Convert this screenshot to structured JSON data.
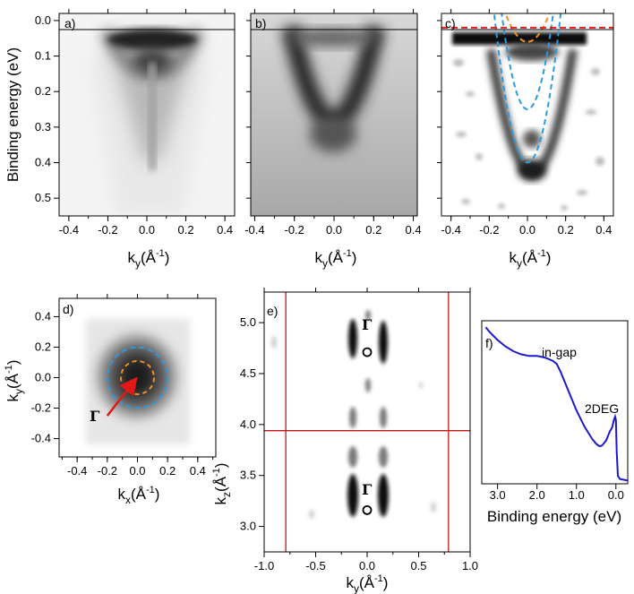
{
  "figure": {
    "panels": {
      "a": {
        "label": "a)",
        "xlabel_main": "k",
        "xlabel_sub": "y",
        "xlabel_unit": "(Å",
        "xlabel_exp": "-1",
        "xlabel_close": ")",
        "ylabel": "Binding energy (eV)"
      },
      "b": {
        "label": "b)",
        "xlabel_main": "k",
        "xlabel_sub": "y",
        "xlabel_unit": "(Å",
        "xlabel_exp": "-1",
        "xlabel_close": ")"
      },
      "c": {
        "label": "c)",
        "xlabel_main": "k",
        "xlabel_sub": "y",
        "xlabel_unit": "(Å",
        "xlabel_exp": "-1",
        "xlabel_close": ")"
      },
      "d": {
        "label": "d)",
        "xlabel_main": "k",
        "xlabel_sub": "x",
        "xlabel_unit": "(Å",
        "xlabel_exp": "-1",
        "xlabel_close": ")",
        "ylabel_main": "k",
        "ylabel_sub": "y",
        "ylabel_unit": "(Å",
        "ylabel_exp": "-1",
        "ylabel_close": ")",
        "gamma": "Γ"
      },
      "e": {
        "label": "e)",
        "xlabel_main": "k",
        "xlabel_sub": "y",
        "xlabel_unit": "(Å",
        "xlabel_exp": "-1",
        "xlabel_close": ")",
        "ylabel_main": "k",
        "ylabel_sub": "z",
        "ylabel_unit": "(Å",
        "ylabel_exp": "-1",
        "ylabel_close": ")",
        "gamma_top": "Γ",
        "gamma_bottom": "Γ"
      },
      "f": {
        "label": "f)",
        "xlabel": "Binding energy (eV)",
        "annotation_ingap": "in-gap",
        "annotation_2deg": "2DEG"
      }
    },
    "colors": {
      "blue_dash": "#2a9be0",
      "orange_dash": "#f0901e",
      "red_dash": "#e02020",
      "red_line": "#c0181b",
      "curve_blue": "#1a1acc",
      "arrow": "#e01818"
    }
  },
  "chart_data": [
    {
      "panel": "a",
      "type": "heatmap",
      "title": "",
      "xlabel": "ky(Å-1)",
      "ylabel": "Binding energy (eV)",
      "xlim": [
        -0.45,
        0.45
      ],
      "ylim": [
        0.55,
        -0.02
      ],
      "x_ticks": [
        "-0.4",
        "-0.2",
        "0.0",
        "0.2",
        "0.4"
      ],
      "y_ticks": [
        "0.0",
        "0.1",
        "0.2",
        "0.3",
        "0.4",
        "0.5"
      ],
      "x_tick_values": [
        -0.4,
        -0.2,
        0.0,
        0.2,
        0.4
      ],
      "y_tick_values": [
        0.0,
        0.1,
        0.2,
        0.3,
        0.4,
        0.5
      ]
    },
    {
      "panel": "b",
      "type": "heatmap",
      "title": "",
      "xlabel": "ky(Å-1)",
      "xlim": [
        -0.42,
        0.42
      ],
      "ylim": [
        0.55,
        -0.02
      ],
      "x_ticks": [
        "-0.4",
        "-0.2",
        "0.0",
        "0.2",
        "0.4"
      ],
      "x_tick_values": [
        -0.4,
        -0.2,
        0.0,
        0.2,
        0.4
      ]
    },
    {
      "panel": "c",
      "type": "heatmap",
      "title": "",
      "xlabel": "ky(Å-1)",
      "xlim": [
        -0.45,
        0.45
      ],
      "ylim": [
        0.55,
        -0.02
      ],
      "x_ticks": [
        "-0.4",
        "-0.2",
        "0.0",
        "0.2",
        "0.4"
      ],
      "x_tick_values": [
        -0.4,
        -0.2,
        0.0,
        0.2,
        0.4
      ],
      "overlays": [
        {
          "name": "blue-outer-parabola",
          "color": "#2a9be0",
          "style": "dashed",
          "vertex_x": 0.0,
          "vertex_y": 0.4,
          "crosses_zero_at": [
            -0.17,
            0.17
          ]
        },
        {
          "name": "blue-inner-parabola",
          "color": "#2a9be0",
          "style": "dashed",
          "vertex_x": 0.0,
          "vertex_y": 0.25,
          "crosses_zero_at": [
            -0.13,
            0.13
          ]
        },
        {
          "name": "orange-parabola",
          "color": "#f0901e",
          "style": "dashed",
          "vertex_x": 0.0,
          "vertex_y": 0.06,
          "crosses_zero_at": [
            -0.1,
            0.1
          ]
        },
        {
          "name": "red-fermi-line",
          "color": "#e02020",
          "style": "dashed",
          "y": 0.02
        }
      ]
    },
    {
      "panel": "d",
      "type": "heatmap",
      "title": "",
      "xlabel": "kx(Å-1)",
      "ylabel": "ky(Å-1)",
      "xlim": [
        -0.52,
        0.52
      ],
      "ylim": [
        -0.52,
        0.52
      ],
      "x_ticks": [
        "-0.4",
        "-0.2",
        "0.0",
        "0.2",
        "0.4"
      ],
      "y_ticks": [
        "-0.4",
        "-0.2",
        "0.0",
        "0.2",
        "0.4"
      ],
      "x_tick_values": [
        -0.4,
        -0.2,
        0.0,
        0.2,
        0.4
      ],
      "y_tick_values": [
        -0.4,
        -0.2,
        0.0,
        0.2,
        0.4
      ],
      "overlays": [
        {
          "name": "blue-fermi-contour",
          "color": "#2a9be0",
          "style": "dashed",
          "radius": 0.2
        },
        {
          "name": "orange-fermi-contour",
          "color": "#f0901e",
          "style": "dashed",
          "radius": 0.11
        },
        {
          "name": "gamma-arrow",
          "color": "#e01818",
          "from": [
            -0.2,
            -0.25
          ],
          "to": [
            0.0,
            0.0
          ]
        }
      ]
    },
    {
      "panel": "e",
      "type": "heatmap",
      "title": "",
      "xlabel": "ky(Å-1)",
      "ylabel": "kz(Å-1)",
      "xlim": [
        -1.0,
        1.0
      ],
      "ylim": [
        2.75,
        5.3
      ],
      "x_ticks": [
        "-1.0",
        "-0.5",
        "0.0",
        "0.5",
        "1.0"
      ],
      "y_ticks": [
        "3.0",
        "3.5",
        "4.0",
        "4.5",
        "5.0"
      ],
      "x_tick_values": [
        -1.0,
        -0.5,
        0.0,
        0.5,
        1.0
      ],
      "y_tick_values": [
        3.0,
        3.5,
        4.0,
        4.5,
        5.0
      ],
      "gamma_points": [
        {
          "x": 0.0,
          "y": 4.71
        },
        {
          "x": 0.0,
          "y": 3.16
        }
      ],
      "lines": {
        "vertical": [
          -0.79,
          0.79
        ],
        "horizontal": [
          3.94
        ]
      }
    },
    {
      "panel": "f",
      "type": "line",
      "title": "",
      "xlabel": "Binding energy (eV)",
      "ylabel": "",
      "xlim": [
        3.4,
        -0.3
      ],
      "ylim": [
        0.0,
        1.0
      ],
      "x_ticks": [
        "3.0",
        "2.0",
        "1.0",
        "0.0"
      ],
      "x_tick_values": [
        3.0,
        2.0,
        1.0,
        0.0
      ],
      "x": [
        3.3,
        3.2,
        3.0,
        2.8,
        2.6,
        2.4,
        2.2,
        2.0,
        1.8,
        1.6,
        1.5,
        1.4,
        1.2,
        1.0,
        0.8,
        0.6,
        0.5,
        0.45,
        0.4,
        0.35,
        0.3,
        0.25,
        0.2,
        0.15,
        0.1,
        0.05,
        0.02,
        0.0,
        -0.02,
        -0.05,
        -0.1,
        -0.2,
        -0.3
      ],
      "values": [
        0.98,
        0.95,
        0.9,
        0.86,
        0.83,
        0.81,
        0.8,
        0.8,
        0.79,
        0.77,
        0.75,
        0.7,
        0.58,
        0.46,
        0.36,
        0.28,
        0.25,
        0.24,
        0.235,
        0.24,
        0.255,
        0.27,
        0.3,
        0.33,
        0.35,
        0.4,
        0.42,
        0.4,
        0.2,
        0.05,
        0.03,
        0.025,
        0.02
      ]
    }
  ]
}
